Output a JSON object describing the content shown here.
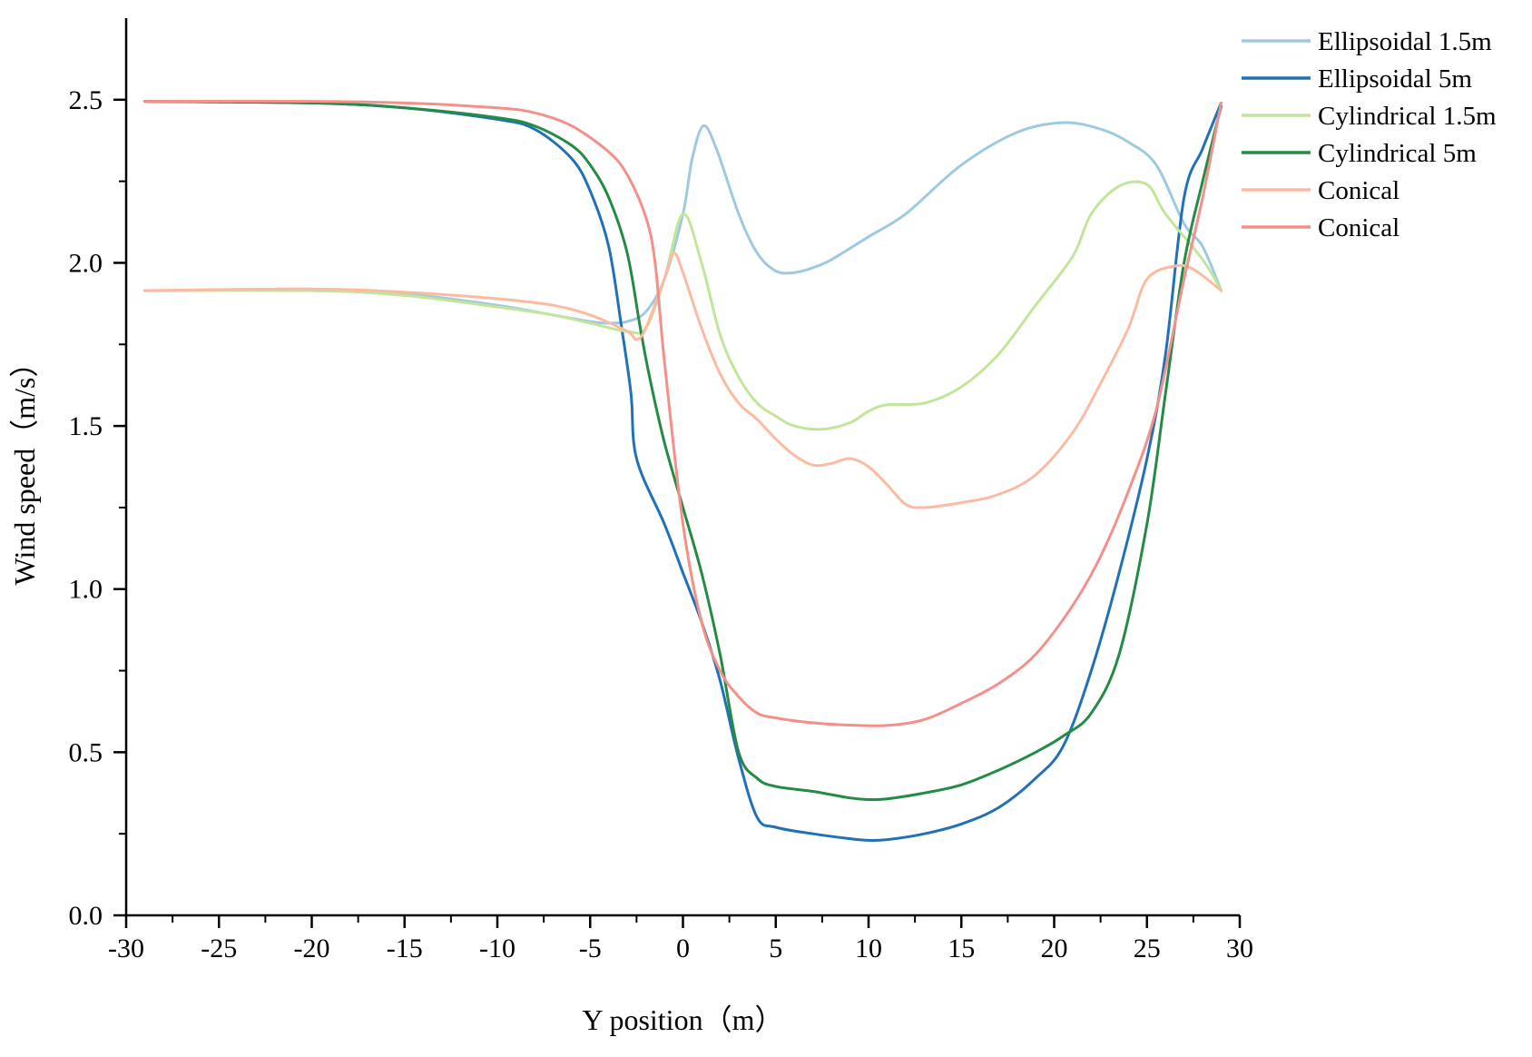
{
  "chart_data": {
    "type": "line",
    "title": "",
    "xlabel": "Y position（m）",
    "ylabel": "Wind speed（m/s）",
    "xlim": [
      -30,
      30
    ],
    "ylim": [
      0,
      2.75
    ],
    "x_ticks": [
      -30,
      -25,
      -20,
      -15,
      -10,
      -5,
      0,
      5,
      10,
      15,
      20,
      25,
      30
    ],
    "x_tick_labels": [
      "-30",
      "-25",
      "-20",
      "-15",
      "-10",
      "-5",
      "0",
      "5",
      "10",
      "15",
      "20",
      "25",
      "30"
    ],
    "y_ticks": [
      0,
      0.5,
      1,
      1.5,
      2,
      2.5
    ],
    "y_tick_labels": [
      "0.0",
      "0.5",
      "1.0",
      "1.5",
      "2.0",
      "2.5"
    ],
    "grid": false,
    "legend_position": "top-right",
    "series": [
      {
        "name": "Ellipsoidal 1.5m",
        "color": "#9ecae1",
        "points": [
          [
            -29,
            1.915
          ],
          [
            -20,
            1.915
          ],
          [
            -15,
            1.905
          ],
          [
            -10,
            1.87
          ],
          [
            -7,
            1.84
          ],
          [
            -5,
            1.82
          ],
          [
            -4,
            1.815
          ],
          [
            -3,
            1.82
          ],
          [
            -2,
            1.85
          ],
          [
            -1,
            1.95
          ],
          [
            0,
            2.15
          ],
          [
            0.5,
            2.32
          ],
          [
            1.1,
            2.42
          ],
          [
            1.8,
            2.35
          ],
          [
            3,
            2.15
          ],
          [
            4,
            2.03
          ],
          [
            5,
            1.975
          ],
          [
            6,
            1.97
          ],
          [
            7,
            1.985
          ],
          [
            8,
            2.01
          ],
          [
            10,
            2.08
          ],
          [
            12,
            2.15
          ],
          [
            15,
            2.3
          ],
          [
            18,
            2.4
          ],
          [
            20.5,
            2.43
          ],
          [
            22.5,
            2.41
          ],
          [
            24,
            2.37
          ],
          [
            25.5,
            2.3
          ],
          [
            27,
            2.12
          ],
          [
            28,
            2.05
          ],
          [
            29,
            1.915
          ]
        ]
      },
      {
        "name": "Ellipsoidal 5m",
        "color": "#2171b5",
        "points": [
          [
            -29,
            2.495
          ],
          [
            -20,
            2.49
          ],
          [
            -15,
            2.475
          ],
          [
            -10,
            2.44
          ],
          [
            -8,
            2.41
          ],
          [
            -6,
            2.32
          ],
          [
            -5,
            2.22
          ],
          [
            -4,
            2.05
          ],
          [
            -3.3,
            1.8
          ],
          [
            -2.8,
            1.6
          ],
          [
            -2.5,
            1.4
          ],
          [
            -1,
            1.2
          ],
          [
            0,
            1.05
          ],
          [
            1,
            0.9
          ],
          [
            2,
            0.72
          ],
          [
            3,
            0.48
          ],
          [
            4,
            0.3
          ],
          [
            5,
            0.27
          ],
          [
            7,
            0.25
          ],
          [
            9,
            0.235
          ],
          [
            10,
            0.23
          ],
          [
            11,
            0.232
          ],
          [
            13,
            0.25
          ],
          [
            15,
            0.28
          ],
          [
            17,
            0.33
          ],
          [
            19,
            0.42
          ],
          [
            20.5,
            0.52
          ],
          [
            22,
            0.75
          ],
          [
            23.5,
            1.05
          ],
          [
            25,
            1.4
          ],
          [
            26,
            1.72
          ],
          [
            27,
            2.2
          ],
          [
            28,
            2.35
          ],
          [
            29,
            2.49
          ]
        ]
      },
      {
        "name": "Cylindrical 1.5m",
        "color": "#c2e699",
        "points": [
          [
            -29,
            1.915
          ],
          [
            -20,
            1.915
          ],
          [
            -15,
            1.9
          ],
          [
            -10,
            1.865
          ],
          [
            -7,
            1.84
          ],
          [
            -5,
            1.815
          ],
          [
            -3,
            1.79
          ],
          [
            -2,
            1.8
          ],
          [
            -1,
            1.95
          ],
          [
            0,
            2.15
          ],
          [
            1,
            2.0
          ],
          [
            2,
            1.78
          ],
          [
            3,
            1.65
          ],
          [
            4,
            1.57
          ],
          [
            5,
            1.53
          ],
          [
            6,
            1.5
          ],
          [
            7.5,
            1.49
          ],
          [
            9,
            1.51
          ],
          [
            10,
            1.545
          ],
          [
            11,
            1.565
          ],
          [
            13,
            1.57
          ],
          [
            15,
            1.62
          ],
          [
            17,
            1.72
          ],
          [
            19,
            1.87
          ],
          [
            21,
            2.02
          ],
          [
            22,
            2.15
          ],
          [
            23.5,
            2.235
          ],
          [
            25,
            2.24
          ],
          [
            26,
            2.15
          ],
          [
            28,
            2.01
          ],
          [
            29,
            1.915
          ]
        ]
      },
      {
        "name": "Cylindrical 5m",
        "color": "#238b45",
        "points": [
          [
            -29,
            2.495
          ],
          [
            -20,
            2.49
          ],
          [
            -15,
            2.475
          ],
          [
            -10,
            2.445
          ],
          [
            -8,
            2.42
          ],
          [
            -6,
            2.36
          ],
          [
            -5,
            2.3
          ],
          [
            -4,
            2.2
          ],
          [
            -3,
            2.03
          ],
          [
            -2.3,
            1.8
          ],
          [
            -1.8,
            1.65
          ],
          [
            -1,
            1.45
          ],
          [
            0,
            1.25
          ],
          [
            1,
            1.05
          ],
          [
            2,
            0.8
          ],
          [
            3,
            0.5
          ],
          [
            4,
            0.42
          ],
          [
            5,
            0.395
          ],
          [
            7,
            0.38
          ],
          [
            9,
            0.36
          ],
          [
            10,
            0.355
          ],
          [
            11,
            0.357
          ],
          [
            13,
            0.375
          ],
          [
            15,
            0.4
          ],
          [
            17,
            0.445
          ],
          [
            19,
            0.5
          ],
          [
            20.5,
            0.55
          ],
          [
            22,
            0.62
          ],
          [
            23.5,
            0.8
          ],
          [
            25,
            1.2
          ],
          [
            26,
            1.6
          ],
          [
            27,
            2.0
          ],
          [
            28,
            2.25
          ],
          [
            29,
            2.48
          ]
        ]
      },
      {
        "name": "Conical",
        "color": "#fcbba1",
        "points": [
          [
            -29,
            1.915
          ],
          [
            -20,
            1.92
          ],
          [
            -15,
            1.91
          ],
          [
            -10,
            1.89
          ],
          [
            -7,
            1.87
          ],
          [
            -5,
            1.84
          ],
          [
            -3,
            1.79
          ],
          [
            -2.5,
            1.765
          ],
          [
            -2,
            1.8
          ],
          [
            -1,
            1.95
          ],
          [
            -0.5,
            2.03
          ],
          [
            0,
            1.97
          ],
          [
            1,
            1.8
          ],
          [
            2,
            1.66
          ],
          [
            3,
            1.57
          ],
          [
            4,
            1.52
          ],
          [
            5,
            1.46
          ],
          [
            6,
            1.41
          ],
          [
            7,
            1.38
          ],
          [
            8,
            1.385
          ],
          [
            9,
            1.4
          ],
          [
            10,
            1.375
          ],
          [
            11,
            1.32
          ],
          [
            12,
            1.26
          ],
          [
            13,
            1.25
          ],
          [
            15,
            1.265
          ],
          [
            17,
            1.29
          ],
          [
            19,
            1.35
          ],
          [
            21,
            1.48
          ],
          [
            22.5,
            1.63
          ],
          [
            24,
            1.8
          ],
          [
            25,
            1.95
          ],
          [
            26.5,
            1.99
          ],
          [
            27.5,
            1.98
          ],
          [
            29,
            1.915
          ]
        ]
      },
      {
        "name": "Conical",
        "color": "#f4908a",
        "points": [
          [
            -29,
            2.495
          ],
          [
            -20,
            2.495
          ],
          [
            -15,
            2.49
          ],
          [
            -10,
            2.475
          ],
          [
            -8,
            2.46
          ],
          [
            -6,
            2.42
          ],
          [
            -4,
            2.34
          ],
          [
            -3,
            2.27
          ],
          [
            -2,
            2.14
          ],
          [
            -1.5,
            2.0
          ],
          [
            -1,
            1.7
          ],
          [
            0,
            1.2
          ],
          [
            1,
            0.9
          ],
          [
            2,
            0.75
          ],
          [
            3,
            0.67
          ],
          [
            4,
            0.62
          ],
          [
            5,
            0.605
          ],
          [
            7,
            0.59
          ],
          [
            9,
            0.583
          ],
          [
            11,
            0.582
          ],
          [
            13,
            0.6
          ],
          [
            15,
            0.65
          ],
          [
            17,
            0.71
          ],
          [
            19,
            0.8
          ],
          [
            21,
            0.95
          ],
          [
            22.5,
            1.1
          ],
          [
            24,
            1.3
          ],
          [
            25.5,
            1.55
          ],
          [
            27,
            1.95
          ],
          [
            28,
            2.2
          ],
          [
            29,
            2.49
          ]
        ]
      }
    ]
  }
}
